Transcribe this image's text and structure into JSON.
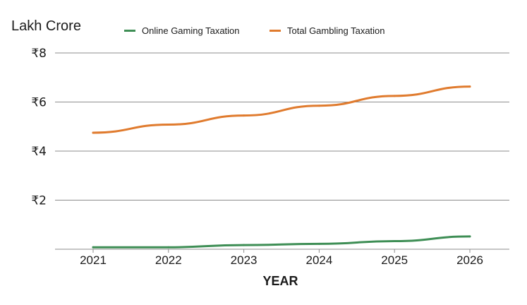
{
  "chart_data": {
    "type": "line",
    "ylabel": "Lakh Crore",
    "xlabel": "YEAR",
    "x": [
      2021,
      2022,
      2023,
      2024,
      2025,
      2026
    ],
    "ylim": [
      0,
      8
    ],
    "yticks": [
      2,
      4,
      6,
      8
    ],
    "ytick_prefix": "₹",
    "grid": true,
    "legend_position": "top",
    "series": [
      {
        "name": "Online Gaming Taxation",
        "color": "#3e8e55",
        "values": [
          0.08,
          0.08,
          0.17,
          0.22,
          0.33,
          0.52
        ]
      },
      {
        "name": "Total Gambling Taxation",
        "color": "#e07b2e",
        "values": [
          4.75,
          5.08,
          5.45,
          5.85,
          6.25,
          6.63
        ]
      }
    ]
  }
}
